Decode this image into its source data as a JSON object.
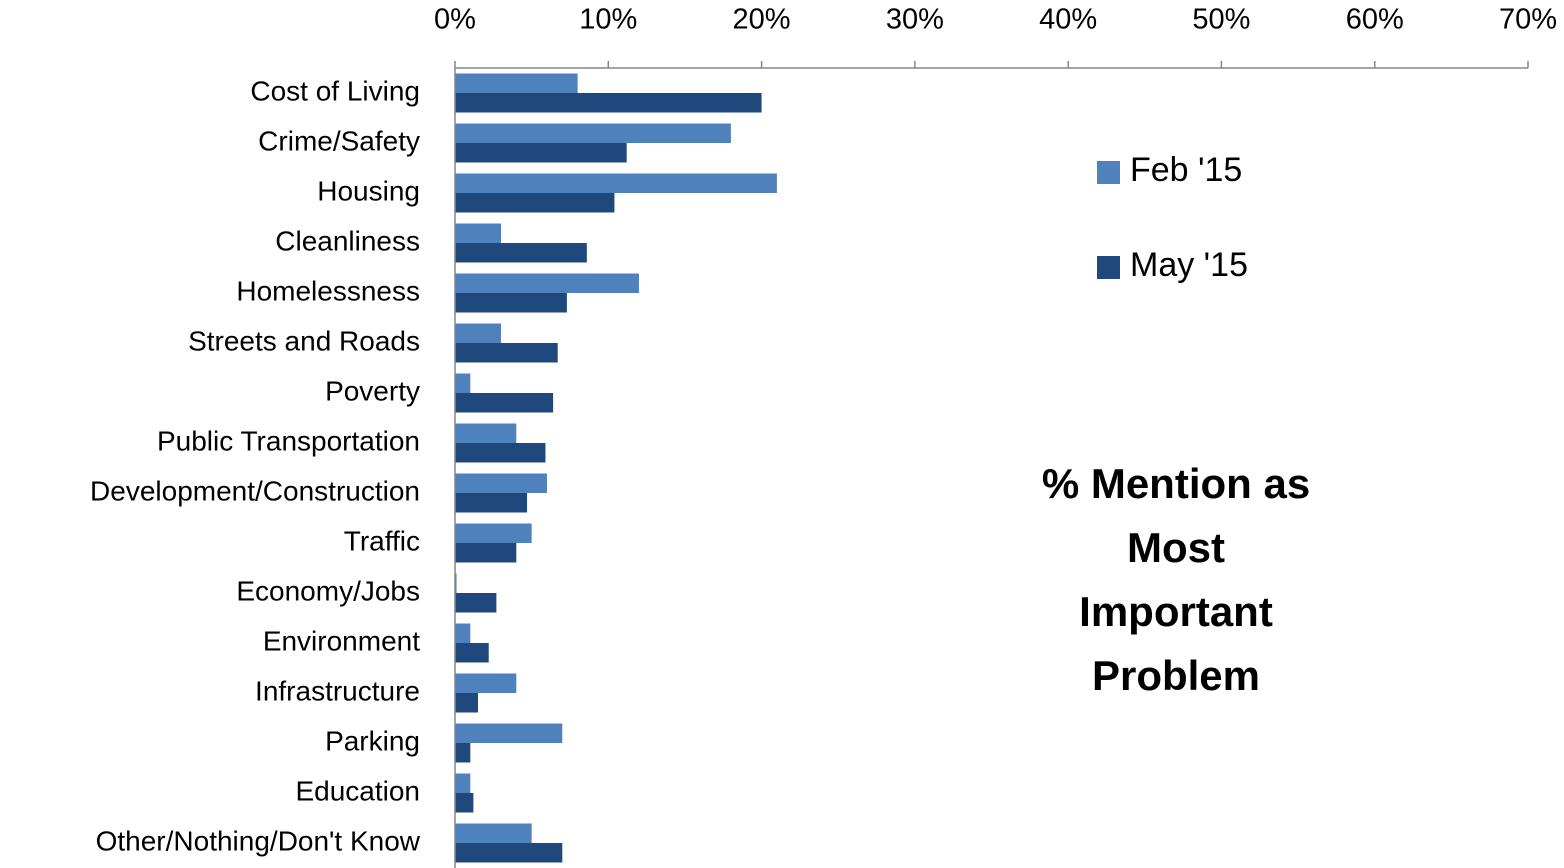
{
  "chart_data": {
    "type": "barh",
    "categories": [
      "Cost of Living",
      "Crime/Safety",
      "Housing",
      "Cleanliness",
      "Homelessness",
      "Streets and Roads",
      "Poverty",
      "Public Transportation",
      "Development/Construction",
      "Traffic",
      "Economy/Jobs",
      "Environment",
      "Infrastructure",
      "Parking",
      "Education",
      "Other/Nothing/Don't Know"
    ],
    "series": [
      {
        "name": "Feb '15",
        "color": "#4f81bd",
        "values": [
          8.0,
          18.0,
          21.0,
          3.0,
          12.0,
          3.0,
          1.0,
          4.0,
          6.0,
          5.0,
          0.1,
          1.0,
          4.0,
          7.0,
          1.0,
          5.0
        ]
      },
      {
        "name": "May '15",
        "color": "#1f497d",
        "values": [
          20.0,
          11.2,
          10.4,
          8.6,
          7.3,
          6.7,
          6.4,
          5.9,
          4.7,
          4.0,
          2.7,
          2.2,
          1.5,
          1.0,
          1.2,
          7.0
        ]
      }
    ],
    "xlim": [
      0,
      70
    ],
    "xticks": [
      {
        "value": 0,
        "label": "0%"
      },
      {
        "value": 10,
        "label": "10%"
      },
      {
        "value": 20,
        "label": "20%"
      },
      {
        "value": 30,
        "label": "30%"
      },
      {
        "value": 40,
        "label": "40%"
      },
      {
        "value": 50,
        "label": "50%"
      },
      {
        "value": 60,
        "label": "60%"
      },
      {
        "value": 70,
        "label": "70%"
      }
    ],
    "legend": "right",
    "annotations": [
      "% Mention as",
      "Most",
      "Important",
      "Problem"
    ]
  }
}
